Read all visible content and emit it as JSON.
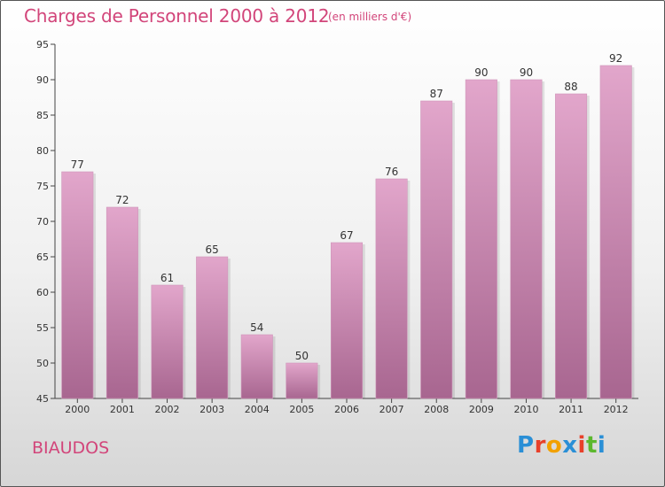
{
  "header": {
    "title": "Charges de Personnel 2000 à 2012",
    "subtitle": "(en milliers d'€)"
  },
  "footer": {
    "commune": "BIAUDOS",
    "logo": [
      "P",
      "r",
      "o",
      "x",
      "i",
      "t",
      "i"
    ],
    "logo_colors": [
      "#2a8fd6",
      "#e8402a",
      "#f2a100",
      "#2a8fd6",
      "#e8402a",
      "#5cb82e",
      "#2a8fd6"
    ]
  },
  "chart_data": {
    "type": "bar",
    "title": "Charges de Personnel 2000 à 2012",
    "subtitle": "(en milliers d'€)",
    "categories": [
      "2000",
      "2001",
      "2002",
      "2003",
      "2004",
      "2005",
      "2006",
      "2007",
      "2008",
      "2009",
      "2010",
      "2011",
      "2012"
    ],
    "values": [
      77,
      72,
      61,
      65,
      54,
      50,
      67,
      76,
      87,
      90,
      90,
      88,
      92
    ],
    "ylim": [
      45,
      95
    ],
    "yticks": [
      45,
      50,
      55,
      60,
      65,
      70,
      75,
      80,
      85,
      90,
      95
    ],
    "grid": false,
    "bar_color_top": "#e2a6cb",
    "bar_color_bottom": "#a86690"
  }
}
